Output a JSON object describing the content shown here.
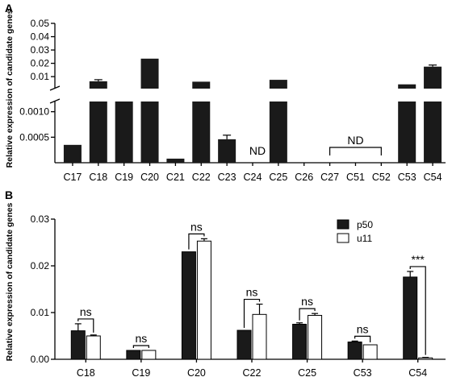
{
  "chart_data": [
    {
      "panel": "A",
      "type": "bar",
      "ylabel": "Relative expression of candidate genes",
      "categories": [
        "C17",
        "C18",
        "C19",
        "C20",
        "C21",
        "C22",
        "C23",
        "C24",
        "C25",
        "C26",
        "C27",
        "C51",
        "C52",
        "C53",
        "C54"
      ],
      "values": [
        0.00035,
        0.0065,
        0.0012,
        0.0235,
        8e-05,
        0.0062,
        0.00046,
        null,
        0.0076,
        null,
        null,
        null,
        null,
        0.0042,
        0.0175
      ],
      "errors": [
        0,
        0.0012,
        0,
        0,
        0,
        0,
        8e-05,
        null,
        0,
        null,
        null,
        null,
        null,
        0,
        0.0012
      ],
      "axis_break": true,
      "lower_ylim": [
        0,
        0.0012
      ],
      "upper_ylim": [
        0.001,
        0.05
      ],
      "lower_ticks": [
        "0.0005",
        "0.0010"
      ],
      "upper_ticks": [
        "0.01",
        "0.02",
        "0.03",
        "0.04",
        "0.05"
      ],
      "annotations": [
        {
          "text": "ND",
          "categories": [
            "C24"
          ]
        },
        {
          "text": "ND",
          "categories": [
            "C27",
            "C51",
            "C52"
          ]
        }
      ],
      "colors": {
        "bar": "#1a1a1a"
      }
    },
    {
      "panel": "B",
      "type": "bar",
      "ylabel": "Relative expression of candidate genes",
      "categories": [
        "C18",
        "C19",
        "C20",
        "C22",
        "C25",
        "C53",
        "C54"
      ],
      "ylim": [
        0,
        0.03
      ],
      "yticks": [
        "0.00",
        "0.01",
        "0.02",
        "0.03"
      ],
      "series": [
        {
          "name": "p50",
          "values": [
            0.0061,
            0.0019,
            0.023,
            0.0062,
            0.0075,
            0.0037,
            0.0176
          ],
          "errors": [
            0.0015,
            0,
            0,
            0,
            0.0003,
            0.0002,
            0.0012
          ],
          "color": "#1a1a1a"
        },
        {
          "name": "u11",
          "values": [
            0.005,
            0.0019,
            0.0253,
            0.0096,
            0.0094,
            0.0031,
            0.0003
          ],
          "errors": [
            0.0002,
            0,
            0.0005,
            0.0022,
            0.0004,
            0,
            0.0001
          ],
          "color": "#ffffff"
        }
      ],
      "significance": [
        "ns",
        "ns",
        "ns",
        "ns",
        "ns",
        "ns",
        "***"
      ],
      "legend_position": "top-right"
    }
  ]
}
